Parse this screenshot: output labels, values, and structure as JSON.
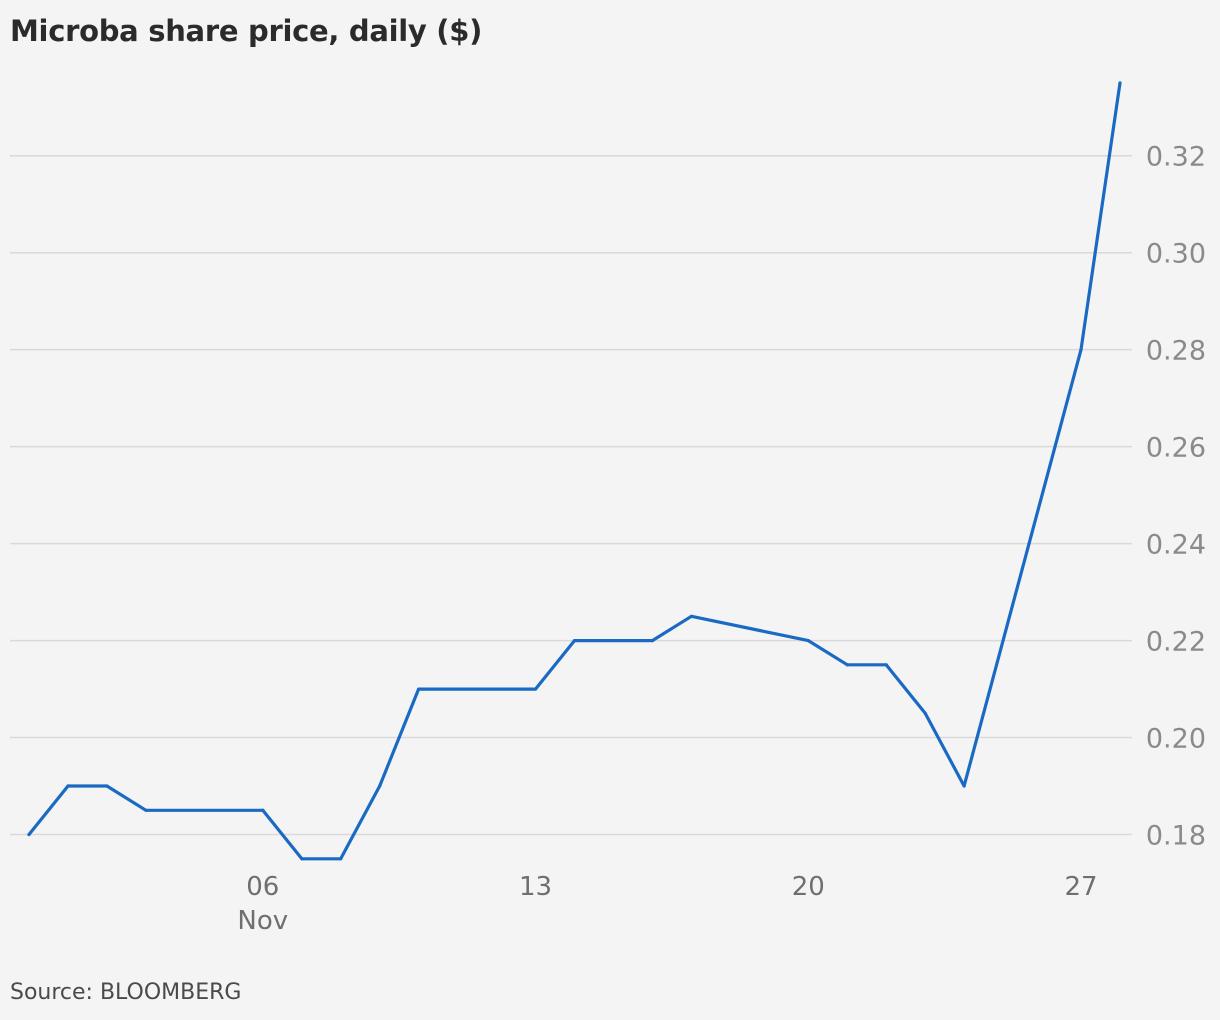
{
  "title": "Microba share price, daily ($)",
  "source": "Source: BLOOMBERG",
  "colors": {
    "line": "#1a6ac4",
    "grid": "#d9d9d9",
    "background": "#f4f4f4"
  },
  "chart_data": {
    "type": "line",
    "title": "Microba share price, daily ($)",
    "xlabel": "",
    "ylabel": "",
    "grid": true,
    "yaxis_position": "right",
    "ylim": [
      0.17,
      0.335
    ],
    "yticks": [
      "0.18",
      "0.20",
      "0.22",
      "0.24",
      "0.26",
      "0.28",
      "0.30",
      "0.32"
    ],
    "xticks": [
      {
        "label": "06",
        "sublabel": "Nov",
        "date": "2023-11-06"
      },
      {
        "label": "13",
        "sublabel": "",
        "date": "2023-11-13"
      },
      {
        "label": "20",
        "sublabel": "",
        "date": "2023-11-20"
      },
      {
        "label": "27",
        "sublabel": "",
        "date": "2023-11-27"
      }
    ],
    "xlim": [
      "2023-10-31",
      "2023-11-28"
    ],
    "series": [
      {
        "x": [
          "2023-10-31",
          "2023-11-01",
          "2023-11-02",
          "2023-11-03",
          "2023-11-06",
          "2023-11-07",
          "2023-11-08",
          "2023-11-09",
          "2023-11-10",
          "2023-11-13",
          "2023-11-14",
          "2023-11-15",
          "2023-11-16",
          "2023-11-17",
          "2023-11-20",
          "2023-11-21",
          "2023-11-22",
          "2023-11-23",
          "2023-11-24",
          "2023-11-27",
          "2023-11-28"
        ],
        "y": [
          0.18,
          0.19,
          0.19,
          0.185,
          0.185,
          0.175,
          0.175,
          0.19,
          0.21,
          0.21,
          0.22,
          0.22,
          0.22,
          0.225,
          0.22,
          0.215,
          0.215,
          0.205,
          0.19,
          0.28,
          0.335
        ]
      }
    ]
  }
}
